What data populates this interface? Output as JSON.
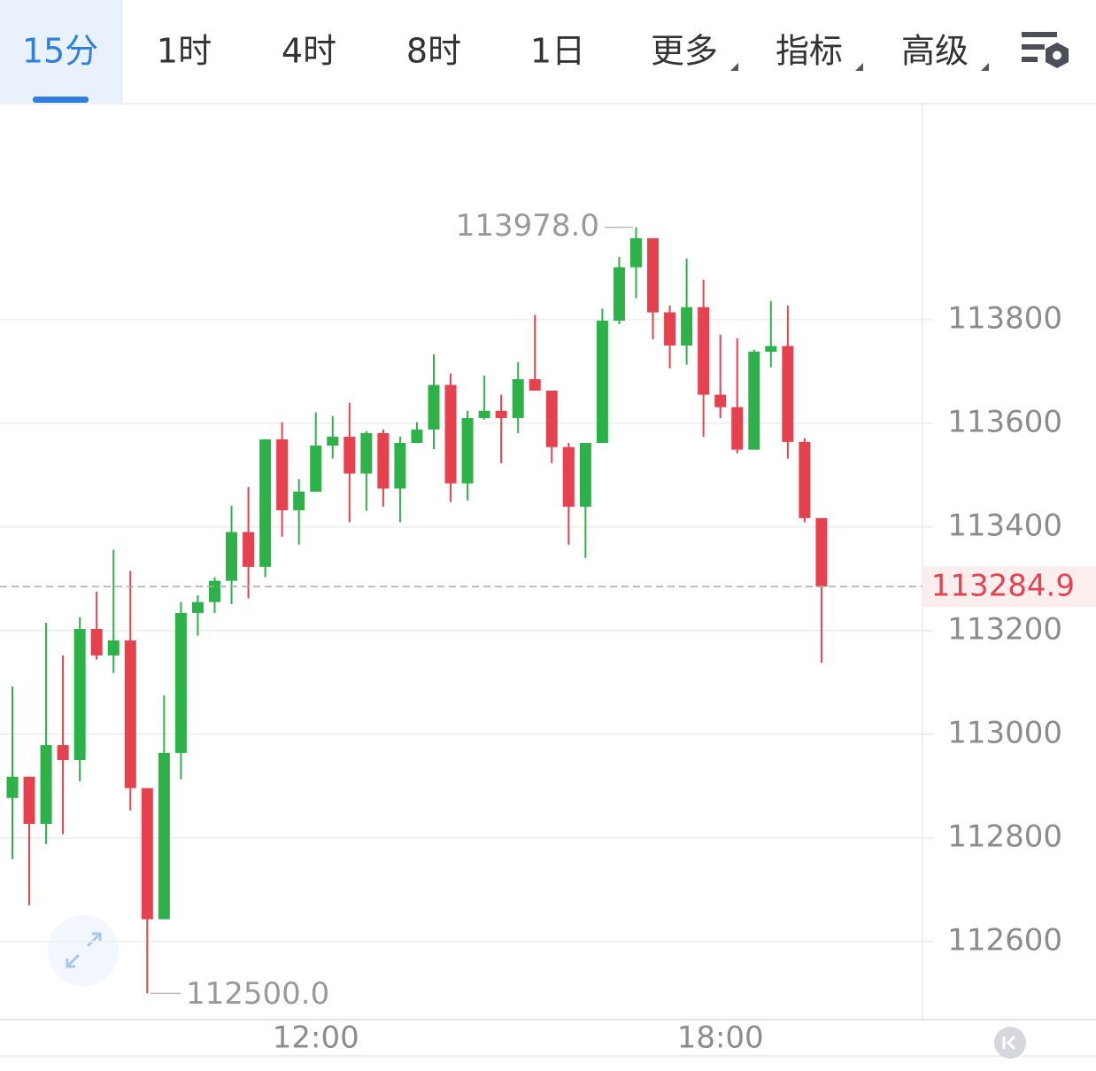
{
  "tabs": [
    "15分",
    "1时",
    "4时",
    "8时",
    "1日",
    "更多",
    "指标",
    "高级"
  ],
  "active_tab": 0,
  "chart_data": {
    "type": "candlestick",
    "categories": [
      null,
      null,
      null,
      null,
      null,
      null,
      null,
      null,
      null,
      null,
      null,
      null,
      null,
      null,
      null,
      null,
      null,
      null,
      "12:00",
      null,
      null,
      null,
      null,
      null,
      null,
      null,
      null,
      null,
      null,
      null,
      null,
      null,
      null,
      null,
      null,
      null,
      null,
      null,
      null,
      null,
      null,
      null,
      "18:00",
      null,
      null,
      null,
      null,
      null,
      null
    ],
    "open": [
      112877,
      112918,
      112827,
      112979,
      112950,
      113203,
      113152,
      113181,
      112896,
      112643,
      112964,
      113234,
      113255,
      113296,
      113390,
      113323,
      113569,
      113432,
      113468,
      113557,
      113574,
      113503,
      113581,
      113474,
      113562,
      113588,
      113674,
      113484,
      113610,
      113624,
      113610,
      113685,
      113663,
      113554,
      113439,
      113562,
      113798,
      113901,
      113957,
      113814,
      113750,
      113824,
      113655,
      113631,
      113549,
      113738,
      113749,
      113564,
      113417
    ],
    "high": [
      113092,
      112918,
      113215,
      113152,
      113226,
      113275,
      113356,
      113315,
      112896,
      113075,
      113255,
      113268,
      113303,
      113441,
      113477,
      113569,
      113602,
      113492,
      113621,
      113614,
      113639,
      113585,
      113588,
      113574,
      113602,
      113733,
      113696,
      113624,
      113692,
      113655,
      113718,
      113809,
      113663,
      113562,
      113562,
      113821,
      113921,
      113978,
      113957,
      113827,
      113918,
      113877,
      113771,
      113764,
      113742,
      113836,
      113827,
      113571,
      113417
    ],
    "low": [
      112759,
      112670,
      112788,
      112807,
      112909,
      113144,
      113118,
      112853,
      112500,
      112643,
      112913,
      113190,
      113234,
      113251,
      113262,
      113303,
      113381,
      113366,
      113468,
      113532,
      113409,
      113431,
      113439,
      113409,
      113562,
      113550,
      113448,
      113451,
      113607,
      113523,
      113581,
      113663,
      113523,
      113366,
      113340,
      113562,
      113791,
      113841,
      113762,
      113706,
      113713,
      113574,
      113610,
      113542,
      113549,
      113708,
      113532,
      113409,
      113138
    ],
    "close": [
      112918,
      112827,
      112979,
      112950,
      113203,
      113152,
      113181,
      112896,
      112643,
      112964,
      113234,
      113255,
      113296,
      113390,
      113323,
      113569,
      113432,
      113468,
      113557,
      113574,
      113503,
      113581,
      113474,
      113562,
      113588,
      113674,
      113484,
      113610,
      113624,
      113610,
      113685,
      113663,
      113554,
      113439,
      113562,
      113798,
      113901,
      113957,
      113814,
      113750,
      113824,
      113655,
      113631,
      113549,
      113738,
      113749,
      113564,
      113417,
      113284.9
    ],
    "up_color": "#2db24a",
    "down_color": "#e5414f",
    "ylim": [
      112451,
      114215
    ],
    "yticks": [
      112600,
      112800,
      113000,
      113200,
      113400,
      113600,
      113800
    ],
    "grid": true,
    "max_marker": {
      "value": 113978,
      "label": "113978.0"
    },
    "min_marker": {
      "value": 112500,
      "label": "112500.0"
    },
    "last_price": {
      "value": 113284.9,
      "label": "113284.9"
    }
  }
}
